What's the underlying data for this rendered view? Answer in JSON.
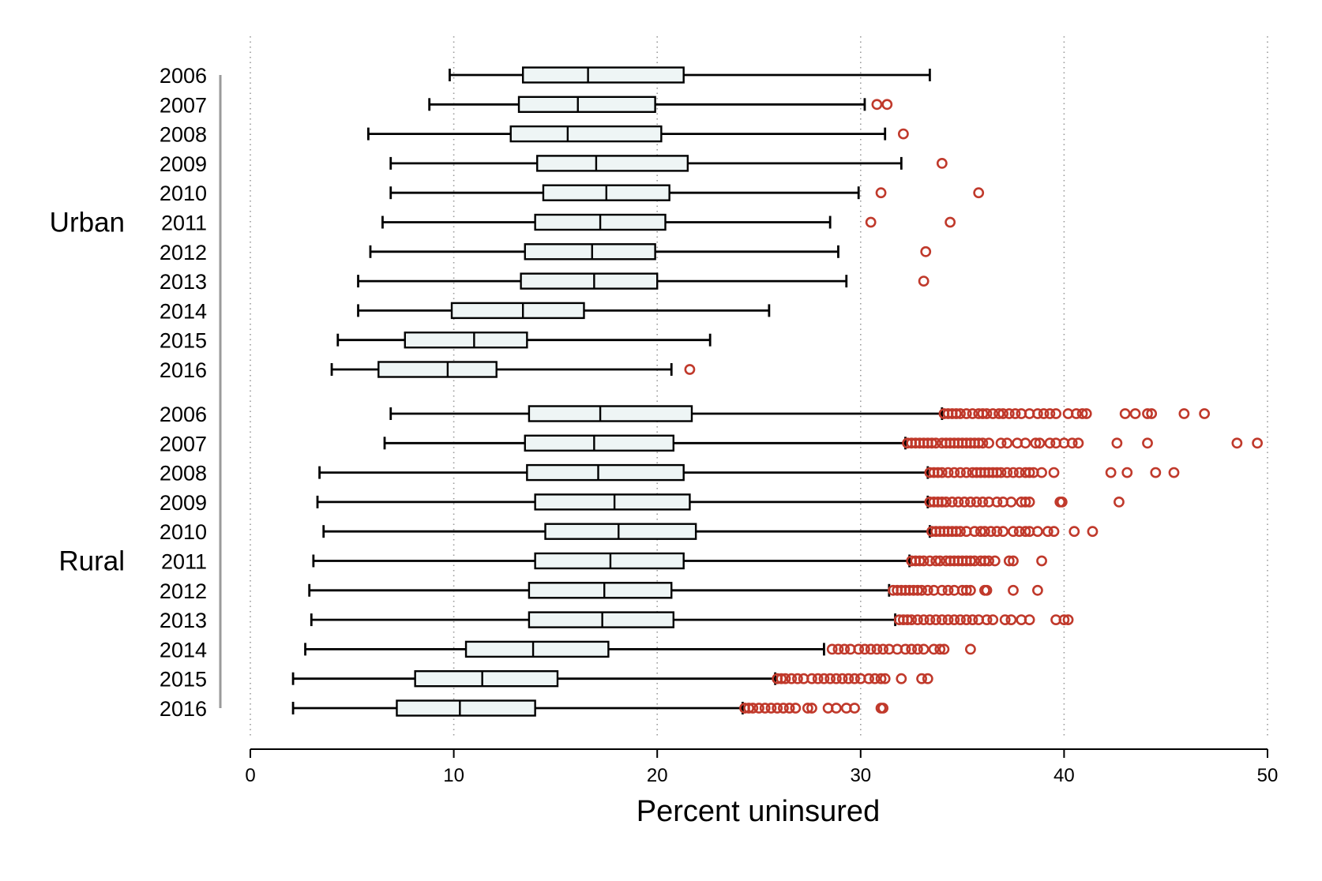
{
  "chart_data": {
    "type": "boxplot",
    "orientation": "horizontal",
    "xlabel": "Percent uninsured",
    "xlim": [
      0,
      50
    ],
    "xticks": [
      0,
      10,
      20,
      30,
      40,
      50
    ],
    "grid": "vertical dotted",
    "colors": {
      "box_fill": "#eef5f5",
      "outlier": "#c0392b",
      "line": "#000000"
    },
    "groups": [
      {
        "name": "Urban",
        "rows": [
          {
            "year": "2006",
            "whisker_low": 9.8,
            "q1": 13.4,
            "median": 16.6,
            "q3": 21.3,
            "whisker_high": 33.4,
            "outliers": []
          },
          {
            "year": "2007",
            "whisker_low": 8.8,
            "q1": 13.2,
            "median": 16.1,
            "q3": 19.9,
            "whisker_high": 30.2,
            "outliers": [
              30.8,
              31.3
            ]
          },
          {
            "year": "2008",
            "whisker_low": 5.8,
            "q1": 12.8,
            "median": 15.6,
            "q3": 20.2,
            "whisker_high": 31.2,
            "outliers": [
              32.1
            ]
          },
          {
            "year": "2009",
            "whisker_low": 6.9,
            "q1": 14.1,
            "median": 17.0,
            "q3": 21.5,
            "whisker_high": 32.0,
            "outliers": [
              34.0
            ]
          },
          {
            "year": "2010",
            "whisker_low": 6.9,
            "q1": 14.4,
            "median": 17.5,
            "q3": 20.6,
            "whisker_high": 29.9,
            "outliers": [
              31.0,
              35.8
            ]
          },
          {
            "year": "2011",
            "whisker_low": 6.5,
            "q1": 14.0,
            "median": 17.2,
            "q3": 20.4,
            "whisker_high": 28.5,
            "outliers": [
              30.5,
              34.4
            ]
          },
          {
            "year": "2012",
            "whisker_low": 5.9,
            "q1": 13.5,
            "median": 16.8,
            "q3": 19.9,
            "whisker_high": 28.9,
            "outliers": [
              33.2
            ]
          },
          {
            "year": "2013",
            "whisker_low": 5.3,
            "q1": 13.3,
            "median": 16.9,
            "q3": 20.0,
            "whisker_high": 29.3,
            "outliers": [
              33.1
            ]
          },
          {
            "year": "2014",
            "whisker_low": 5.3,
            "q1": 9.9,
            "median": 13.4,
            "q3": 16.4,
            "whisker_high": 25.5,
            "outliers": []
          },
          {
            "year": "2015",
            "whisker_low": 4.3,
            "q1": 7.6,
            "median": 11.0,
            "q3": 13.6,
            "whisker_high": 22.6,
            "outliers": []
          },
          {
            "year": "2016",
            "whisker_low": 4.0,
            "q1": 6.3,
            "median": 9.7,
            "q3": 12.1,
            "whisker_high": 20.7,
            "outliers": [
              21.6
            ]
          }
        ]
      },
      {
        "name": "Rural",
        "rows": [
          {
            "year": "2006",
            "whisker_low": 6.9,
            "q1": 13.7,
            "median": 17.2,
            "q3": 21.7,
            "whisker_high": 34.0,
            "outliers": [
              34.1,
              34.3,
              34.5,
              34.7,
              34.9,
              35.2,
              35.5,
              35.8,
              36.0,
              36.2,
              36.5,
              36.8,
              37.0,
              37.3,
              37.6,
              37.9,
              38.3,
              38.7,
              39.0,
              39.3,
              39.6,
              40.2,
              40.6,
              40.9,
              41.1,
              43.0,
              43.5,
              44.1,
              44.3,
              45.9,
              46.9
            ]
          },
          {
            "year": "2007",
            "whisker_low": 6.6,
            "q1": 13.5,
            "median": 16.9,
            "q3": 20.8,
            "whisker_high": 32.2,
            "outliers": [
              32.3,
              32.5,
              32.7,
              32.9,
              33.1,
              33.3,
              33.5,
              33.7,
              34.0,
              34.2,
              34.4,
              34.6,
              34.8,
              35.0,
              35.2,
              35.4,
              35.6,
              35.8,
              36.0,
              36.3,
              36.9,
              37.2,
              37.7,
              38.1,
              38.6,
              38.8,
              39.3,
              39.6,
              40.0,
              40.4,
              40.7,
              42.6,
              44.1,
              48.5,
              49.5
            ]
          },
          {
            "year": "2008",
            "whisker_low": 3.4,
            "q1": 13.6,
            "median": 17.1,
            "q3": 21.3,
            "whisker_high": 33.3,
            "outliers": [
              33.4,
              33.6,
              33.8,
              34.0,
              34.3,
              34.6,
              34.9,
              35.2,
              35.5,
              35.7,
              35.9,
              36.1,
              36.3,
              36.5,
              36.7,
              36.9,
              37.2,
              37.5,
              37.8,
              38.1,
              38.3,
              38.5,
              38.9,
              39.5,
              42.3,
              43.1,
              44.5,
              45.4
            ]
          },
          {
            "year": "2009",
            "whisker_low": 3.3,
            "q1": 14.0,
            "median": 17.9,
            "q3": 21.6,
            "whisker_high": 33.3,
            "outliers": [
              33.4,
              33.6,
              33.8,
              34.0,
              34.2,
              34.5,
              34.8,
              35.1,
              35.4,
              35.7,
              36.0,
              36.3,
              36.7,
              37.0,
              37.4,
              37.9,
              38.1,
              38.3,
              39.8,
              39.9,
              42.7
            ]
          },
          {
            "year": "2010",
            "whisker_low": 3.6,
            "q1": 14.5,
            "median": 18.1,
            "q3": 21.9,
            "whisker_high": 33.4,
            "outliers": [
              33.5,
              33.7,
              33.9,
              34.1,
              34.3,
              34.5,
              34.7,
              34.9,
              35.2,
              35.6,
              35.9,
              36.1,
              36.4,
              36.7,
              37.0,
              37.5,
              37.8,
              38.1,
              38.3,
              38.7,
              39.2,
              39.5,
              40.5,
              41.4
            ]
          },
          {
            "year": "2011",
            "whisker_low": 3.1,
            "q1": 14.0,
            "median": 17.7,
            "q3": 21.3,
            "whisker_high": 32.4,
            "outliers": [
              32.5,
              32.7,
              32.9,
              33.1,
              33.4,
              33.7,
              33.9,
              34.2,
              34.4,
              34.6,
              34.8,
              35.0,
              35.2,
              35.4,
              35.6,
              35.9,
              36.1,
              36.3,
              36.6,
              37.3,
              37.5,
              38.9
            ]
          },
          {
            "year": "2012",
            "whisker_low": 2.9,
            "q1": 13.7,
            "median": 17.4,
            "q3": 20.7,
            "whisker_high": 31.4,
            "outliers": [
              31.6,
              31.8,
              32.0,
              32.2,
              32.4,
              32.6,
              32.8,
              33.0,
              33.3,
              33.6,
              34.0,
              34.3,
              34.6,
              35.0,
              35.2,
              35.4,
              36.1,
              36.2,
              37.5,
              38.7
            ]
          },
          {
            "year": "2013",
            "whisker_low": 3.0,
            "q1": 13.7,
            "median": 17.3,
            "q3": 20.8,
            "whisker_high": 31.7,
            "outliers": [
              31.9,
              32.1,
              32.3,
              32.5,
              32.8,
              33.1,
              33.4,
              33.7,
              34.0,
              34.3,
              34.6,
              34.9,
              35.2,
              35.5,
              35.8,
              36.2,
              36.5,
              37.1,
              37.4,
              37.9,
              38.3,
              39.6,
              40.0,
              40.2
            ]
          },
          {
            "year": "2014",
            "whisker_low": 2.7,
            "q1": 10.6,
            "median": 13.9,
            "q3": 17.6,
            "whisker_high": 28.2,
            "outliers": [
              28.6,
              28.9,
              29.2,
              29.5,
              29.9,
              30.2,
              30.5,
              30.8,
              31.1,
              31.4,
              31.8,
              32.2,
              32.5,
              32.8,
              33.1,
              33.6,
              33.9,
              34.1,
              35.4
            ]
          },
          {
            "year": "2015",
            "whisker_low": 2.1,
            "q1": 8.1,
            "median": 11.4,
            "q3": 15.1,
            "whisker_high": 25.8,
            "outliers": [
              25.9,
              26.1,
              26.3,
              26.6,
              26.9,
              27.2,
              27.6,
              27.9,
              28.2,
              28.5,
              28.8,
              29.1,
              29.4,
              29.7,
              30.0,
              30.4,
              30.7,
              31.0,
              31.2,
              32.0,
              33.0,
              33.3
            ]
          },
          {
            "year": "2016",
            "whisker_low": 2.1,
            "q1": 7.2,
            "median": 10.3,
            "q3": 14.0,
            "whisker_high": 24.2,
            "outliers": [
              24.3,
              24.5,
              24.7,
              25.0,
              25.3,
              25.6,
              25.9,
              26.2,
              26.5,
              26.8,
              27.4,
              27.6,
              28.4,
              28.8,
              29.3,
              29.7,
              31.0,
              31.1
            ]
          }
        ]
      }
    ]
  }
}
